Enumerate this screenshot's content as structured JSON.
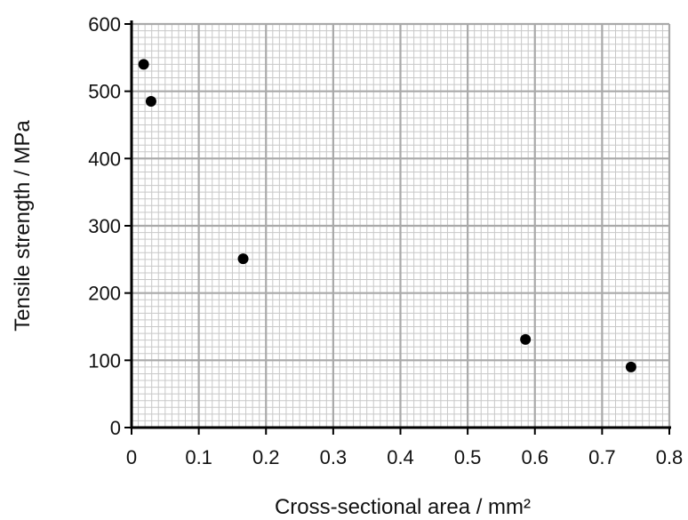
{
  "chart_data": {
    "type": "scatter",
    "title": "",
    "xlabel": "Cross-sectional area / mm²",
    "ylabel": "Tensile strength / MPa",
    "xlim": [
      0,
      0.8
    ],
    "ylim": [
      0,
      600
    ],
    "x_ticks": [
      "0",
      "0.1",
      "0.2",
      "0.3",
      "0.4",
      "0.5",
      "0.6",
      "0.7",
      "0.8"
    ],
    "y_ticks": [
      "0",
      "100",
      "200",
      "300",
      "400",
      "500",
      "600"
    ],
    "grid": true,
    "points": [
      {
        "x": 0.018,
        "y": 540
      },
      {
        "x": 0.029,
        "y": 485
      },
      {
        "x": 0.166,
        "y": 251
      },
      {
        "x": 0.586,
        "y": 131
      },
      {
        "x": 0.743,
        "y": 90
      }
    ],
    "colors": {
      "minor_grid": "#c8c8c8",
      "major_grid": "#a9a9a9",
      "axis": "#000000",
      "marker": "#000000"
    }
  }
}
